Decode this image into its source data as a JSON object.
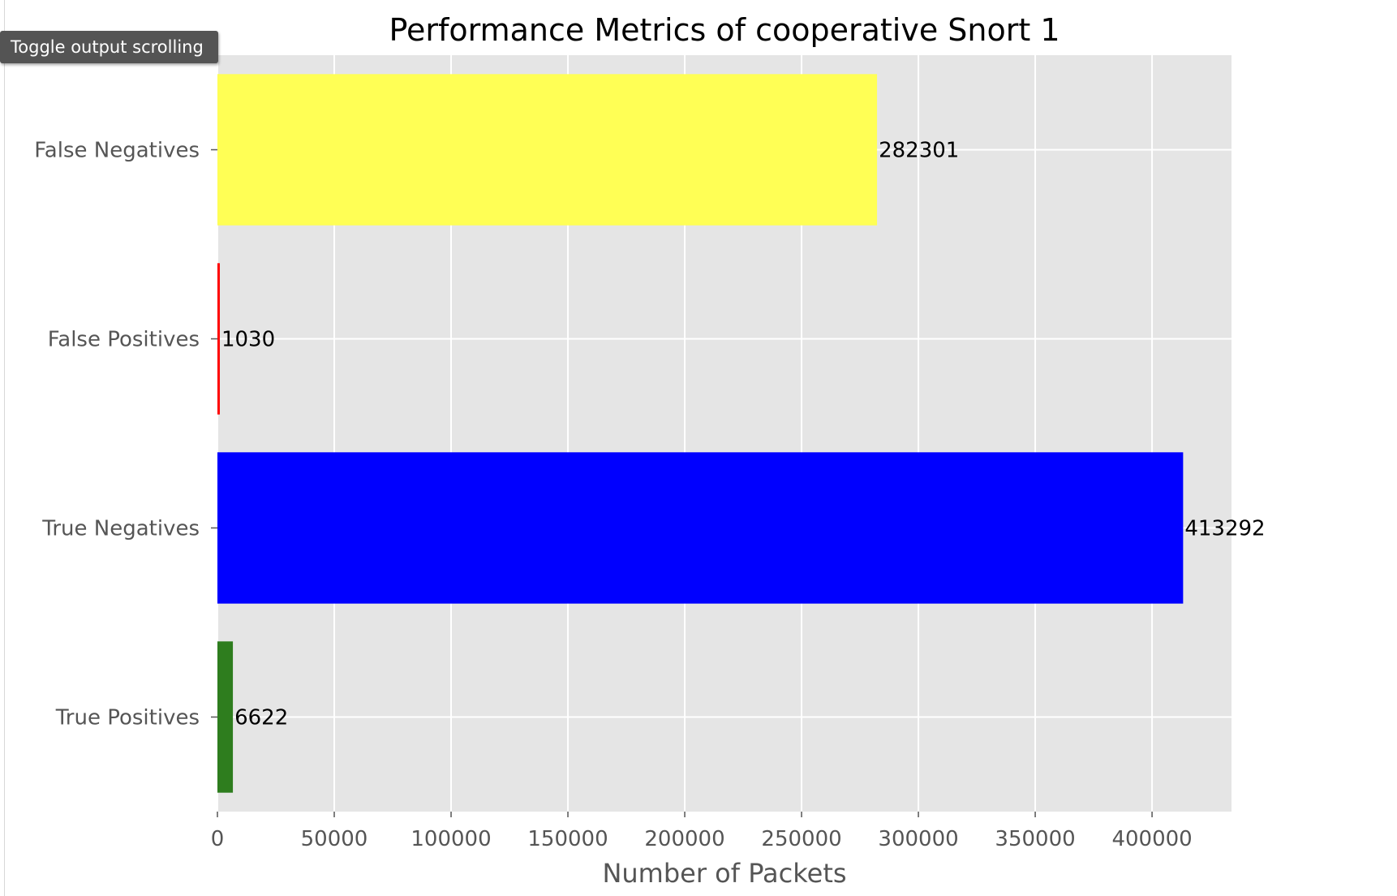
{
  "tooltip": {
    "label": "Toggle output scrolling"
  },
  "chart_data": {
    "type": "bar",
    "orientation": "horizontal",
    "title": "Performance Metrics of cooperative Snort  1",
    "xlabel": "Number of Packets",
    "ylabel": "",
    "categories": [
      "True Positives",
      "True Negatives",
      "False Positives",
      "False Negatives"
    ],
    "values": [
      6622,
      413292,
      1030,
      282301
    ],
    "data_labels": [
      "6622",
      "413292",
      "1030",
      "282301"
    ],
    "colors": [
      "#2e7d1e",
      "#0000ff",
      "#ff0000",
      "#ffff55"
    ],
    "xlim": [
      0,
      434000
    ],
    "xticks": [
      0,
      50000,
      100000,
      150000,
      200000,
      250000,
      300000,
      350000,
      400000
    ],
    "xtick_labels": [
      "0",
      "50000",
      "100000",
      "150000",
      "200000",
      "250000",
      "300000",
      "350000",
      "400000"
    ],
    "grid": true,
    "style": "ggplot",
    "plot_background": "#e5e5e5",
    "grid_color": "#ffffff"
  }
}
